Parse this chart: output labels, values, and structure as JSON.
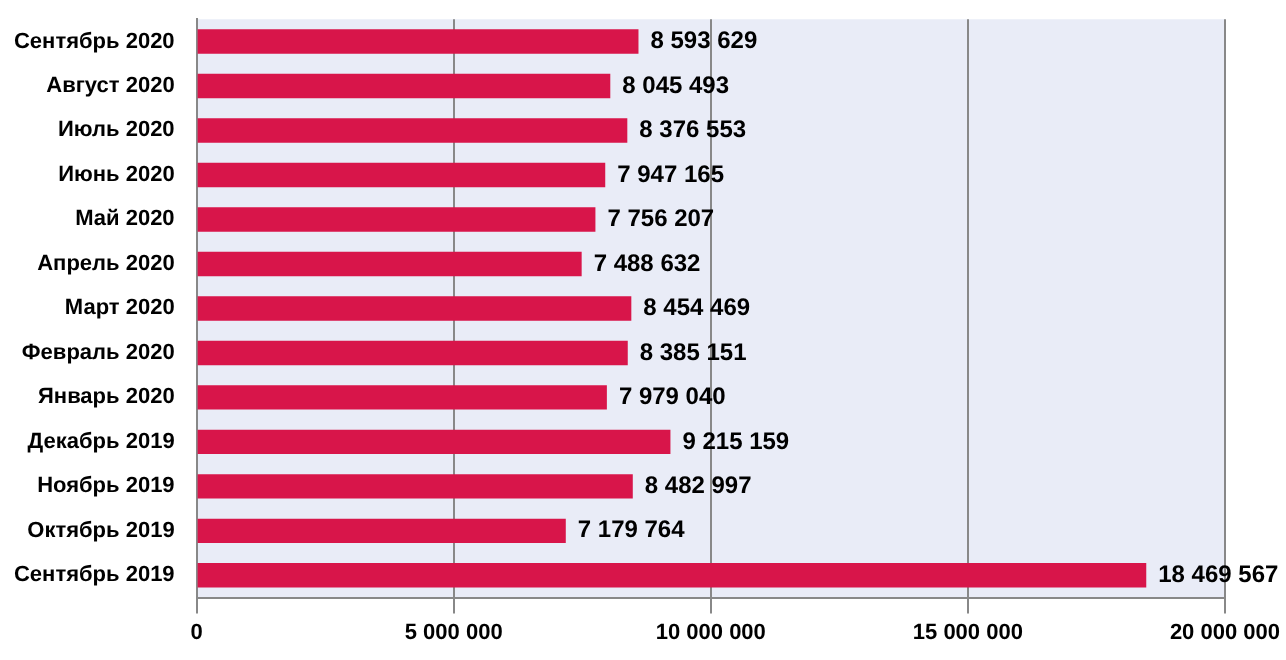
{
  "chart_data": {
    "type": "bar",
    "orientation": "horizontal",
    "categories": [
      "Сентябрь 2020",
      "Август 2020",
      "Июль 2020",
      "Июнь 2020",
      "Май 2020",
      "Апрель 2020",
      "Март 2020",
      "Февраль 2020",
      "Январь 2020",
      "Декабрь 2019",
      "Ноябрь 2019",
      "Октябрь 2019",
      "Сентябрь 2019"
    ],
    "values": [
      8593629,
      8045493,
      8376553,
      7947165,
      7756207,
      7488632,
      8454469,
      8385151,
      7979040,
      9215159,
      8482997,
      7179764,
      18469567
    ],
    "value_labels": [
      "8 593 629",
      "8 045 493",
      "8 376 553",
      "7 947 165",
      "7 756 207",
      "7 488 632",
      "8 454 469",
      "8 385 151",
      "7 979 040",
      "9 215 159",
      "8 482 997",
      "7 179 764",
      "18 469 567"
    ],
    "color": "#d8154a",
    "xlim": [
      0,
      20000000
    ],
    "xticks": [
      0,
      {
        "value": 5000000,
        "label": "5 000 000"
      },
      {
        "value": 10000000,
        "label": "10 000 000"
      },
      {
        "value": 15000000,
        "label": "15 000 000"
      },
      {
        "value": 20000000,
        "label": "20 000 000"
      }
    ],
    "grid": "x",
    "legend": false
  }
}
